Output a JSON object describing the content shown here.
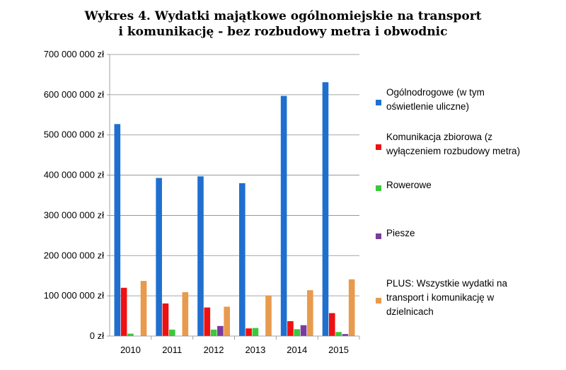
{
  "chart_data": {
    "type": "bar",
    "title": [
      "Wykres 4. Wydatki majątkowe ogólnomiejskie na transport",
      "i komunikację - bez rozbudowy metra i obwodnic"
    ],
    "categories": [
      "2010",
      "2011",
      "2012",
      "2013",
      "2014",
      "2015"
    ],
    "ylim": [
      0,
      700000000
    ],
    "y_ticks": [
      0,
      100000000,
      200000000,
      300000000,
      400000000,
      500000000,
      600000000,
      700000000
    ],
    "y_tick_labels": [
      "0 zł",
      "100 000 000 zł",
      "200 000 000 zł",
      "300 000 000 zł",
      "400 000 000 zł",
      "500 000 000 zł",
      "600 000 000 zł",
      "700 000 000 zł"
    ],
    "grid": true,
    "legend_position": "right",
    "series": [
      {
        "name": [
          "Ogólnodrogowe (w tym",
          "oświetlenie uliczne)"
        ],
        "color": "#1f6fcf",
        "values": [
          527000000,
          393000000,
          397000000,
          380000000,
          597000000,
          631000000
        ]
      },
      {
        "name": [
          "Komunikacja zbiorowa (z",
          "wyłączeniem rozbudowy metra)"
        ],
        "color": "#ee1111",
        "values": [
          120000000,
          81000000,
          71000000,
          19000000,
          37000000,
          57000000
        ]
      },
      {
        "name": [
          "Rowerowe"
        ],
        "color": "#3cc83c",
        "values": [
          6000000,
          16000000,
          16000000,
          20000000,
          17000000,
          10000000
        ]
      },
      {
        "name": [
          "Piesze"
        ],
        "color": "#7a3c9c",
        "values": [
          0,
          0,
          25000000,
          0,
          27000000,
          5000000
        ]
      },
      {
        "name": [
          "PLUS: Wszystkie wydatki na",
          "transport i komunikację w",
          "dzielnicach"
        ],
        "color": "#e89a4e",
        "values": [
          137000000,
          109000000,
          73000000,
          101000000,
          114000000,
          141000000
        ]
      }
    ]
  }
}
